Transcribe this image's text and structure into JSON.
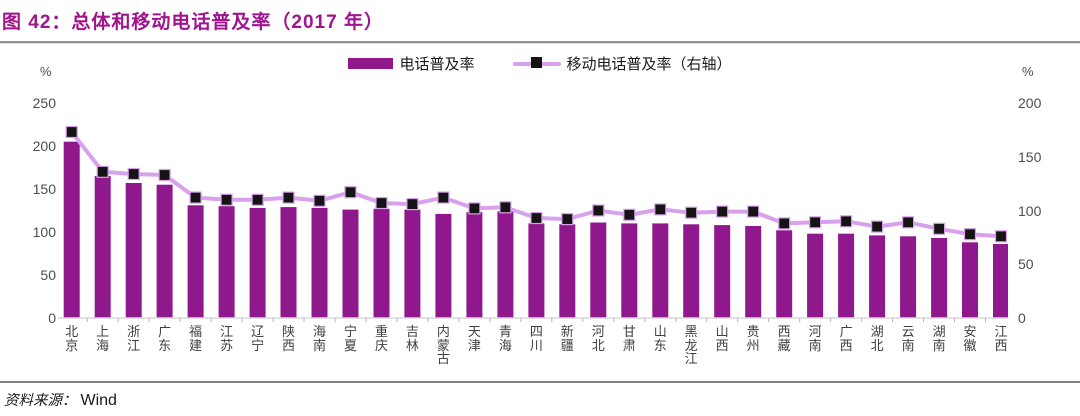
{
  "title": "图 42：总体和移动电话普及率（2017 年）",
  "legend": [
    {
      "label": "电话普及率",
      "type": "bar"
    },
    {
      "label": "移动电话普及率（右轴）",
      "type": "line"
    }
  ],
  "axes": {
    "left_unit": "%",
    "right_unit": "%",
    "left_ticks": [
      0,
      50,
      100,
      150,
      200,
      250
    ],
    "right_ticks": [
      0,
      50,
      100,
      150,
      200
    ]
  },
  "source": {
    "label": "资料来源：",
    "value": "Wind"
  },
  "colors": {
    "title": "#A0148E",
    "bar": "#8E188C",
    "line": "#D7A1EB",
    "marker": "#141414",
    "axis_line": "#d9d9d9",
    "axis_tick": "#b3b3b3",
    "axis_text": "#4d4d4d"
  },
  "chart_data": {
    "type": "bar",
    "title": "总体和移动电话普及率（2017 年）",
    "categories": [
      "北京",
      "上海",
      "浙江",
      "广东",
      "福建",
      "江苏",
      "辽宁",
      "陕西",
      "海南",
      "宁夏",
      "重庆",
      "吉林",
      "内蒙古",
      "天津",
      "青海",
      "四川",
      "新疆",
      "河北",
      "甘肃",
      "山东",
      "黑龙江",
      "山西",
      "贵州",
      "西藏",
      "河南",
      "广西",
      "湖北",
      "云南",
      "湖南",
      "安徽",
      "江西"
    ],
    "series": [
      {
        "name": "电话普及率",
        "type": "bar",
        "axis": "left",
        "values": [
          205,
          165,
          157,
          155,
          131,
          130,
          128,
          129,
          128,
          126,
          127,
          126,
          121,
          123,
          124,
          110,
          109,
          111,
          110,
          110,
          109,
          108,
          107,
          102,
          98,
          98,
          96,
          95,
          93,
          88,
          86
        ]
      },
      {
        "name": "移动电话普及率（右轴）",
        "type": "line",
        "axis": "right",
        "values": [
          173,
          136,
          134,
          133,
          112,
          110,
          110,
          112,
          109,
          117,
          107,
          106,
          112,
          102,
          103,
          93,
          92,
          100,
          96,
          101,
          98,
          99,
          99,
          88,
          89,
          90,
          85,
          89,
          83,
          78,
          76
        ]
      }
    ],
    "xlabel": "",
    "ylabel_left": "%",
    "ylabel_right": "%",
    "left_ylim": [
      0,
      250
    ],
    "right_ylim": [
      0,
      200
    ],
    "grid": false,
    "legend_position": "top-center"
  }
}
